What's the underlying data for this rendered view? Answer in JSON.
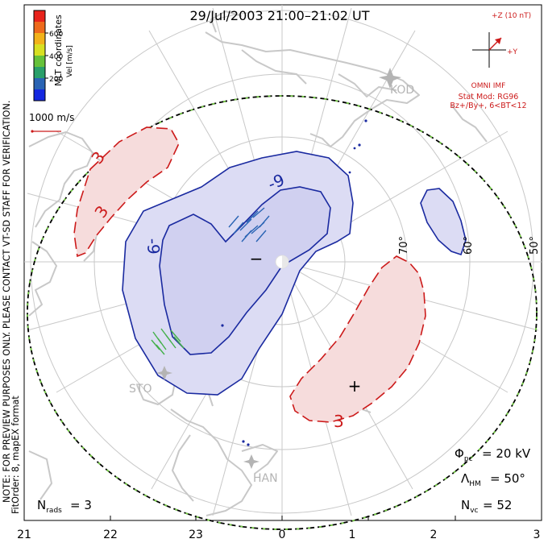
{
  "title": "29/Jul/2003 21:00–21:02 UT",
  "colorbar": {
    "title": "Vel [m/s]",
    "ticks": [
      "600",
      "400",
      "200"
    ],
    "colors": [
      "#e8231c",
      "#ee6a1c",
      "#f2b21a",
      "#d8e022",
      "#66c23a",
      "#2aa06a",
      "#2a64b4",
      "#1428e0"
    ]
  },
  "coord_label": "MLT coordinates",
  "side_note": "NOTE: FOR PREVIEW PURPOSES ONLY. PLEASE CONTACT VT-SD STAFF FOR VERIFICATION.",
  "fit_label": "FitOrder: 8, mapEX format",
  "scale_vector_label": "1000 m/s",
  "imf": {
    "z_label": "+Z (10 nT)",
    "y_label": "+Y",
    "source": "OMNI IMF",
    "model": "Stat Mod: RG96",
    "condition": "Bz+/By+, 6<BT<12"
  },
  "latitude_labels": [
    "70°",
    "60°",
    "50°"
  ],
  "contour_labels": {
    "neg": "-9",
    "pos": "3",
    "min_sign": "−",
    "max_sign": "+"
  },
  "stations": [
    "KOD",
    "STO",
    "HAN"
  ],
  "stats": {
    "phi_pc": "= 20 kV",
    "lambda_hm": "= 50°",
    "n_vc": "= 52",
    "n_rads": "= 3"
  },
  "mlt_ticks": [
    "21",
    "22",
    "23",
    "0",
    "1",
    "2",
    "3"
  ],
  "colors": {
    "negative_contour": "#1a2aa0",
    "negative_fill": "#dcdcf4",
    "positive_contour": "#cc1a1a",
    "positive_fill": "#f6dcdc",
    "land": "#c8c8c8",
    "grid": "#c8c8c8",
    "boundary_green": "#7ad24a"
  }
}
